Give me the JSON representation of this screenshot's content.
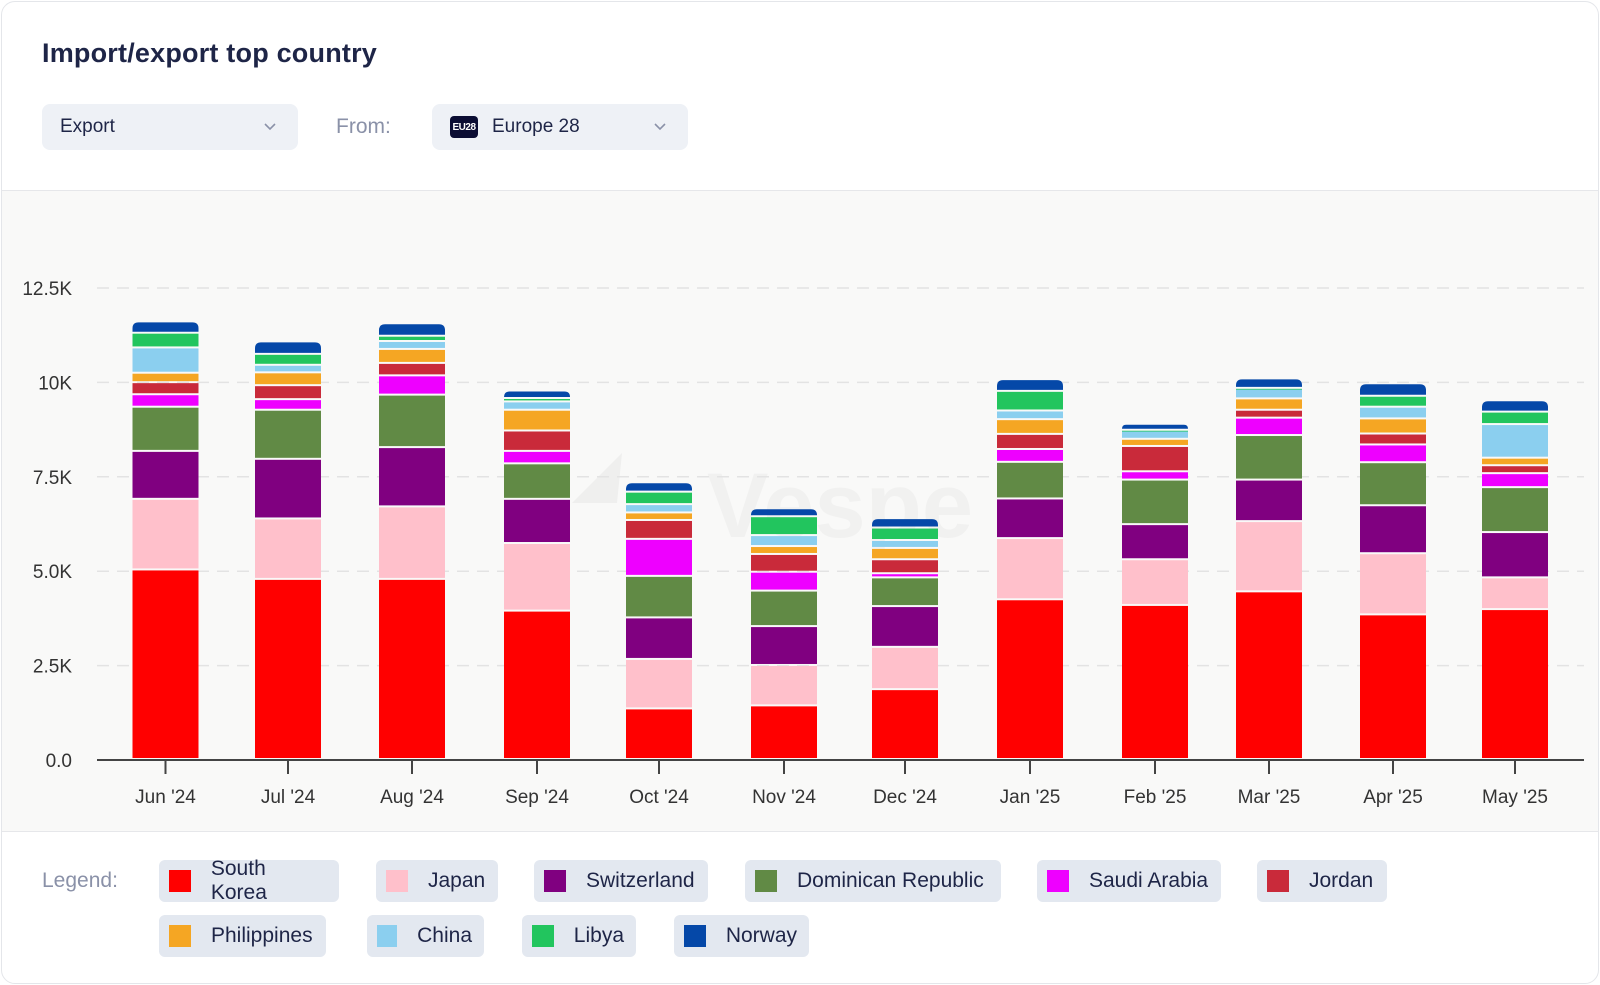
{
  "header": {
    "title": "Import/export top country",
    "type_select": {
      "value": "Export"
    },
    "from_label": "From:",
    "from_select": {
      "badge": "EU28",
      "value": "Europe 28"
    }
  },
  "watermark": "Vespe",
  "legend": {
    "label": "Legend:",
    "items": [
      {
        "name": "South Korea",
        "color": "#ff0000"
      },
      {
        "name": "Japan",
        "color": "#ffc0cb"
      },
      {
        "name": "Switzerland",
        "color": "#800080"
      },
      {
        "name": "Dominican Republic",
        "color": "#618a45"
      },
      {
        "name": "Saudi Arabia",
        "color": "#ee00ff"
      },
      {
        "name": "Jordan",
        "color": "#c92a3a"
      },
      {
        "name": "Philippines",
        "color": "#f5a623"
      },
      {
        "name": "China",
        "color": "#8bcfef"
      },
      {
        "name": "Libya",
        "color": "#22c55e"
      },
      {
        "name": "Norway",
        "color": "#0548a8"
      }
    ]
  },
  "chart_data": {
    "type": "bar",
    "stacked": true,
    "title": "Import/export top country",
    "xlabel": "",
    "ylabel": "",
    "ylim": [
      0,
      12500
    ],
    "yticks": [
      0,
      2500,
      5000,
      7500,
      10000,
      12500
    ],
    "ytick_labels": [
      "0.0",
      "2.5K",
      "5.0K",
      "7.5K",
      "10K",
      "12.5K"
    ],
    "grid": true,
    "legend_position": "bottom",
    "categories": [
      "Jun '24",
      "Jul '24",
      "Aug '24",
      "Sep '24",
      "Oct '24",
      "Nov '24",
      "Dec '24",
      "Jan '25",
      "Feb '25",
      "Mar '25",
      "Apr '25",
      "May '25"
    ],
    "series": [
      {
        "name": "South Korea",
        "color": "#ff0000",
        "values": [
          5020,
          4770,
          4770,
          3930,
          1340,
          1420,
          1850,
          4230,
          4080,
          4440,
          3830,
          3970
        ]
      },
      {
        "name": "Japan",
        "color": "#ffc0cb",
        "values": [
          1870,
          1600,
          1920,
          1790,
          1310,
          1070,
          1120,
          1620,
          1210,
          1860,
          1620,
          840
        ]
      },
      {
        "name": "Switzerland",
        "color": "#800080",
        "values": [
          1270,
          1580,
          1570,
          1170,
          1100,
          1030,
          1080,
          1050,
          930,
          1100,
          1270,
          1200
        ]
      },
      {
        "name": "Dominican Republic",
        "color": "#618a45",
        "values": [
          1170,
          1300,
          1390,
          940,
          1100,
          940,
          760,
          970,
          1180,
          1180,
          1140,
          1190
        ]
      },
      {
        "name": "Saudi Arabia",
        "color": "#ee00ff",
        "values": [
          330,
          280,
          510,
          330,
          980,
          500,
          110,
          340,
          220,
          460,
          470,
          370
        ]
      },
      {
        "name": "Jordan",
        "color": "#c92a3a",
        "values": [
          320,
          370,
          330,
          540,
          500,
          470,
          370,
          400,
          670,
          210,
          290,
          210
        ]
      },
      {
        "name": "Philippines",
        "color": "#f5a623",
        "values": [
          250,
          340,
          370,
          550,
          200,
          210,
          300,
          390,
          190,
          300,
          400,
          200
        ]
      },
      {
        "name": "China",
        "color": "#8bcfef",
        "values": [
          670,
          200,
          210,
          220,
          220,
          290,
          210,
          230,
          220,
          260,
          310,
          890
        ]
      },
      {
        "name": "Libya",
        "color": "#22c55e",
        "values": [
          390,
          290,
          140,
          90,
          330,
          500,
          330,
          520,
          20,
          20,
          290,
          330
        ]
      },
      {
        "name": "Norway",
        "color": "#0548a8",
        "values": [
          300,
          330,
          330,
          200,
          250,
          210,
          250,
          310,
          160,
          250,
          330,
          300
        ]
      }
    ]
  }
}
